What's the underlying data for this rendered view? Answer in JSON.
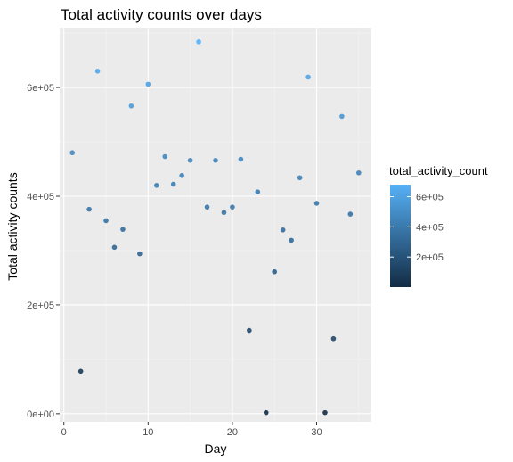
{
  "chart_data": {
    "type": "scatter",
    "title": "Total activity counts over days",
    "xlabel": "Day",
    "ylabel": "Total activity counts",
    "xlim": [
      -0.5,
      36.5
    ],
    "ylim": [
      -15000,
      710000
    ],
    "x_ticks": [
      0,
      10,
      20,
      30
    ],
    "x_tick_labels": [
      "0",
      "10",
      "20",
      "30"
    ],
    "y_ticks": [
      0,
      200000,
      400000,
      600000
    ],
    "y_tick_labels": [
      "0e+00",
      "2e+05",
      "4e+05",
      "6e+05"
    ],
    "grid": true,
    "legend": {
      "title": "total_activity_count",
      "position": "right",
      "color_min": 0,
      "color_max": 680000,
      "ticks": [
        200000,
        400000,
        600000
      ],
      "tick_labels": [
        "2e+05",
        "4e+05",
        "6e+05"
      ],
      "low_color": "#132B43",
      "high_color": "#56B1F7"
    },
    "points": [
      {
        "x": 1,
        "y": 480000
      },
      {
        "x": 2,
        "y": 78000
      },
      {
        "x": 3,
        "y": 376000
      },
      {
        "x": 4,
        "y": 630000
      },
      {
        "x": 5,
        "y": 355000
      },
      {
        "x": 6,
        "y": 306000
      },
      {
        "x": 7,
        "y": 339000
      },
      {
        "x": 8,
        "y": 566000
      },
      {
        "x": 9,
        "y": 294000
      },
      {
        "x": 10,
        "y": 606000
      },
      {
        "x": 11,
        "y": 420000
      },
      {
        "x": 12,
        "y": 473000
      },
      {
        "x": 13,
        "y": 422000
      },
      {
        "x": 14,
        "y": 438000
      },
      {
        "x": 15,
        "y": 466000
      },
      {
        "x": 16,
        "y": 684000
      },
      {
        "x": 17,
        "y": 380000
      },
      {
        "x": 18,
        "y": 466000
      },
      {
        "x": 19,
        "y": 370000
      },
      {
        "x": 20,
        "y": 380000
      },
      {
        "x": 21,
        "y": 468000
      },
      {
        "x": 22,
        "y": 153000
      },
      {
        "x": 23,
        "y": 408000
      },
      {
        "x": 24,
        "y": 2000
      },
      {
        "x": 25,
        "y": 261000
      },
      {
        "x": 26,
        "y": 338000
      },
      {
        "x": 27,
        "y": 319000
      },
      {
        "x": 28,
        "y": 434000
      },
      {
        "x": 29,
        "y": 619000
      },
      {
        "x": 30,
        "y": 387000
      },
      {
        "x": 31,
        "y": 2000
      },
      {
        "x": 32,
        "y": 138000
      },
      {
        "x": 33,
        "y": 547000
      },
      {
        "x": 34,
        "y": 367000
      },
      {
        "x": 35,
        "y": 443000
      }
    ]
  }
}
